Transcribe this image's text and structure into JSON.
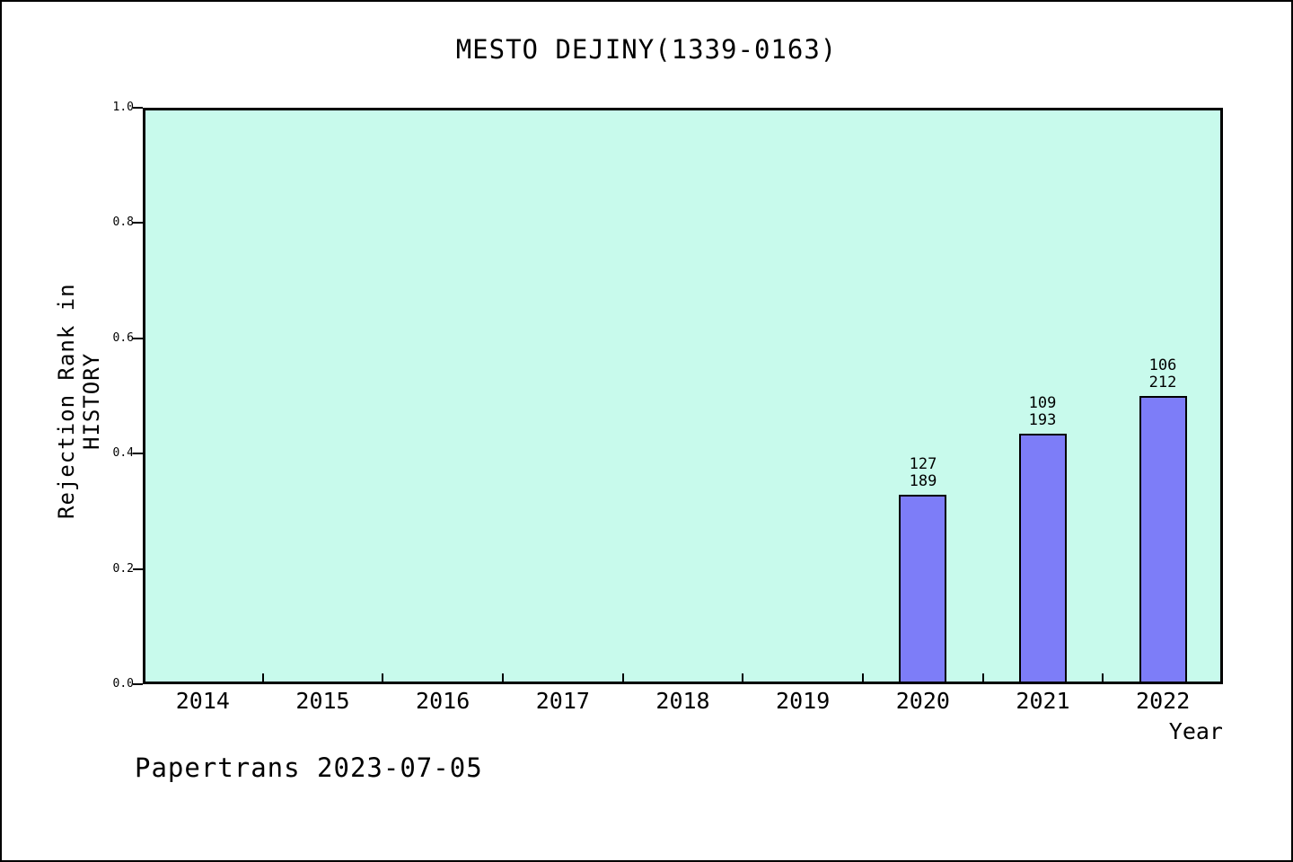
{
  "page": {
    "footer": "Papertrans 2023-07-05"
  },
  "chart_data": {
    "type": "bar",
    "title": "MESTO DEJINY(1339-0163)",
    "xlabel": "Year",
    "ylabel": "Rejection Rank in HISTORY",
    "categories": [
      "2014",
      "2015",
      "2016",
      "2017",
      "2018",
      "2019",
      "2020",
      "2021",
      "2022"
    ],
    "values": [
      null,
      null,
      null,
      null,
      null,
      null,
      0.328,
      0.435,
      0.5
    ],
    "bar_labels": [
      null,
      null,
      null,
      null,
      null,
      null,
      [
        "127",
        "189"
      ],
      [
        "109",
        "193"
      ],
      [
        "106",
        "212"
      ]
    ],
    "ylim": [
      0.0,
      1.0
    ],
    "yticks": [
      0.0,
      0.2,
      0.4,
      0.6,
      0.8,
      1.0
    ],
    "ytick_labels": [
      "0.0",
      "0.2",
      "0.4",
      "0.6",
      "0.8",
      "1.0"
    ],
    "grid": false,
    "legend": null,
    "colors": {
      "bar_fill": "#7d7df8",
      "bar_border": "#000000",
      "plot_bg": "#c8faec",
      "text": "#000000"
    }
  }
}
